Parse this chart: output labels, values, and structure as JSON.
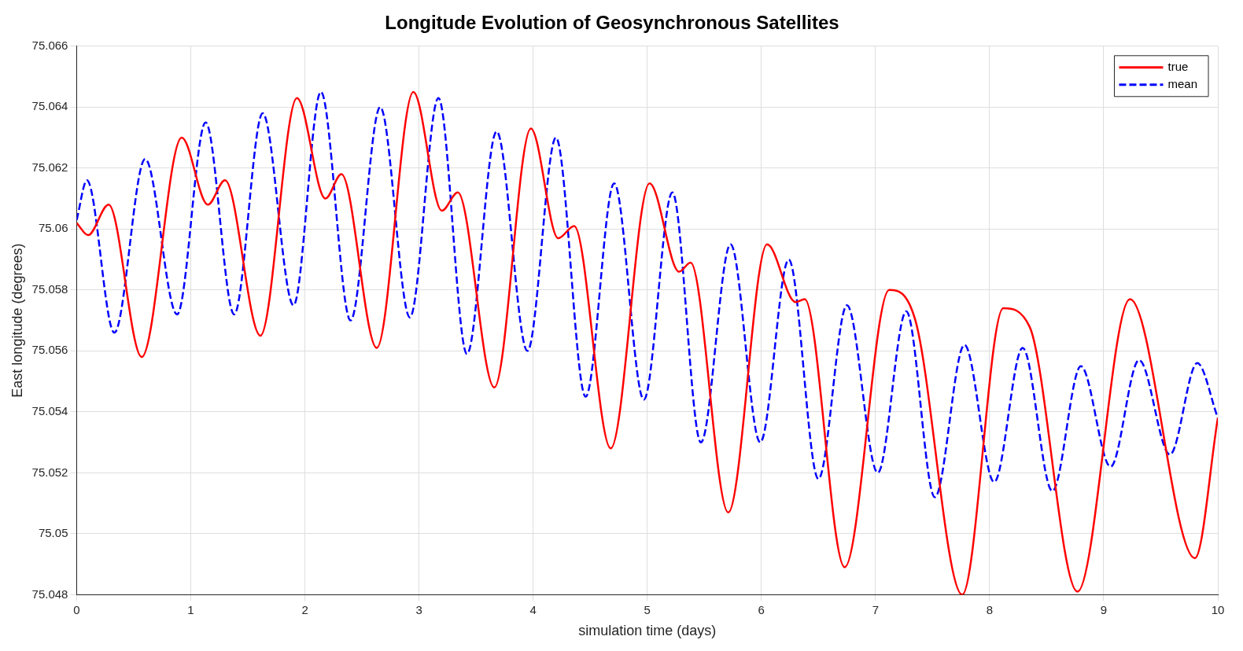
{
  "chart_data": {
    "type": "line",
    "title": "Longitude Evolution of Geosynchronous Satellites",
    "xlabel": "simulation time (days)",
    "ylabel": "East longitude (degrees)",
    "xlim": [
      0,
      10
    ],
    "xticks": [
      0,
      1,
      2,
      3,
      4,
      5,
      6,
      7,
      8,
      9,
      10
    ],
    "ylim": [
      75.048,
      75.066
    ],
    "yticks": [
      75.048,
      75.05,
      75.052,
      75.054,
      75.056,
      75.058,
      75.06,
      75.062,
      75.064,
      75.066
    ],
    "grid": true,
    "legend": "top right",
    "marker": "none",
    "series": [
      {
        "name": "true",
        "color": "#ff0000",
        "line_style": "solid",
        "x": [
          0,
          0.1,
          0.28,
          0.57,
          0.92,
          1.15,
          1.3,
          1.61,
          1.93,
          2.18,
          2.32,
          2.63,
          2.95,
          3.2,
          3.34,
          3.66,
          3.98,
          4.22,
          4.36,
          4.68,
          5.02,
          5.28,
          5.38,
          5.71,
          6.05,
          6.3,
          6.38,
          6.73,
          7.12,
          7.35,
          7.76,
          8.12,
          8.35,
          8.77,
          9.23,
          9.8,
          10
        ],
        "values": [
          75.0602,
          75.0598,
          75.0608,
          75.0558,
          75.063,
          75.0608,
          75.0616,
          75.0565,
          75.0643,
          75.061,
          75.0618,
          75.0561,
          75.0645,
          75.0606,
          75.0612,
          75.0548,
          75.0633,
          75.0597,
          75.0601,
          75.0528,
          75.0615,
          75.0586,
          75.0589,
          75.0507,
          75.0595,
          75.0576,
          75.0577,
          75.0489,
          75.058,
          75.057,
          75.048,
          75.0574,
          75.0568,
          75.0481,
          75.0577,
          75.0492,
          75.0538
        ]
      },
      {
        "name": "mean",
        "color": "#0000ff",
        "line_style": "dashed",
        "x": [
          0,
          0.09,
          0.33,
          0.6,
          0.88,
          1.13,
          1.38,
          1.63,
          1.9,
          2.14,
          2.4,
          2.66,
          2.92,
          3.17,
          3.42,
          3.68,
          3.95,
          4.2,
          4.46,
          4.71,
          4.97,
          5.22,
          5.47,
          5.73,
          5.99,
          6.24,
          6.5,
          6.75,
          7.02,
          7.27,
          7.52,
          7.78,
          8.04,
          8.29,
          8.55,
          8.8,
          9.06,
          9.31,
          9.58,
          9.82,
          10
        ],
        "values": [
          75.0603,
          75.0616,
          75.0566,
          75.0623,
          75.0572,
          75.0635,
          75.0572,
          75.0638,
          75.0575,
          75.0645,
          75.057,
          75.064,
          75.0571,
          75.0643,
          75.0559,
          75.0632,
          75.056,
          75.063,
          75.0545,
          75.0615,
          75.0544,
          75.0612,
          75.053,
          75.0595,
          75.053,
          75.059,
          75.0518,
          75.0575,
          75.052,
          75.0573,
          75.0512,
          75.0562,
          75.0517,
          75.0561,
          75.0514,
          75.0555,
          75.0522,
          75.0557,
          75.0526,
          75.0556,
          75.0538
        ]
      }
    ]
  }
}
